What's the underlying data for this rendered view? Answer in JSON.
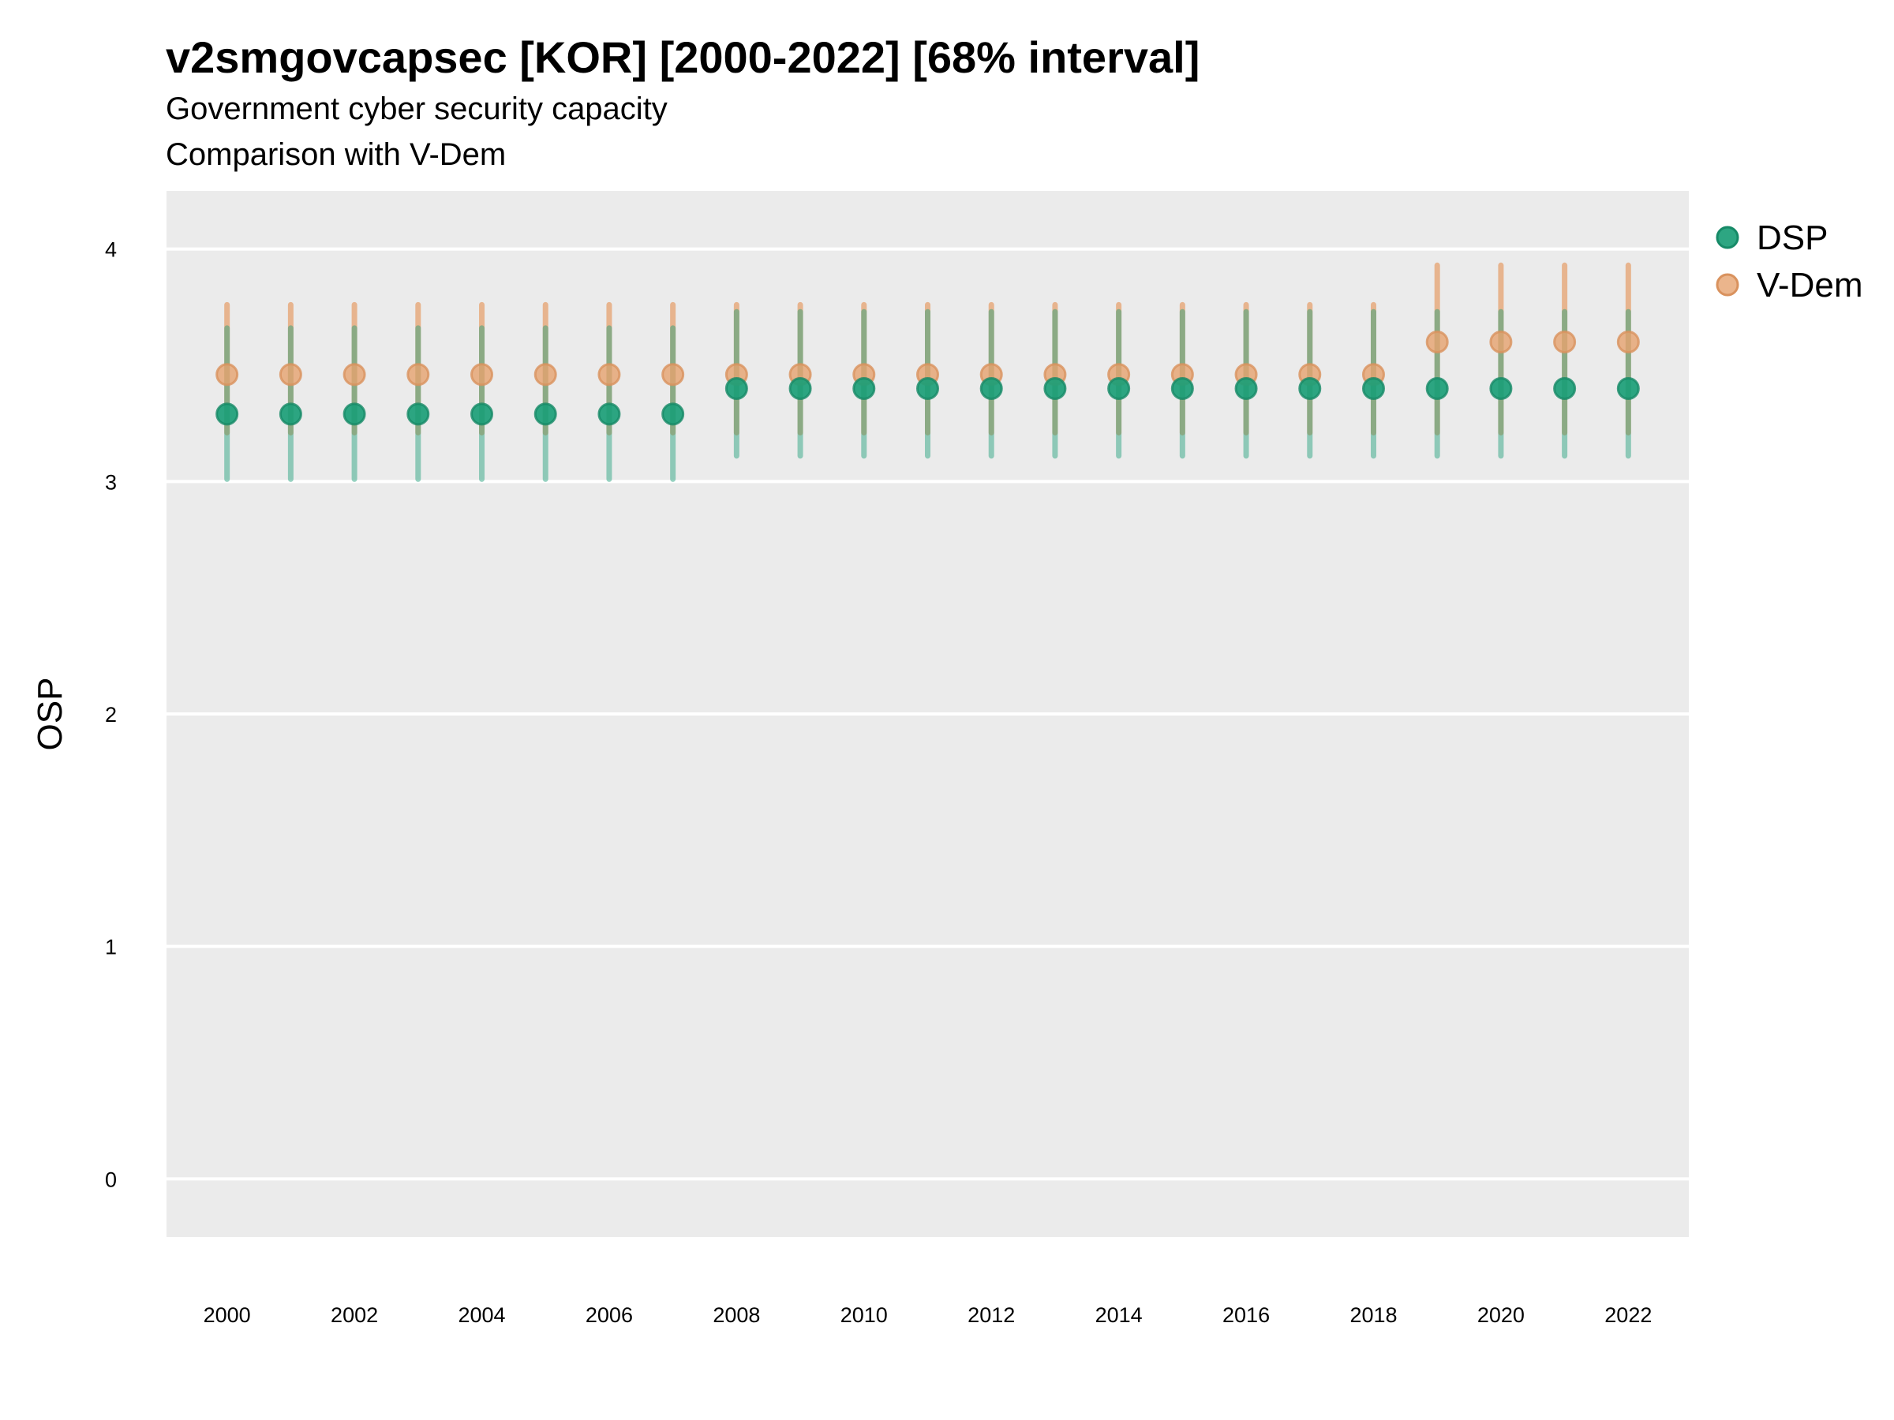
{
  "title": "v2smgovcapsec [KOR] [2000-2022] [68% interval]",
  "subtitle_lines": [
    "Government cyber security capacity",
    "Comparison with V-Dem"
  ],
  "colors": {
    "DSP": "#1b9e77",
    "V-Dem": "#e6a26f",
    "panel": "#ebebeb",
    "grid": "#ffffff"
  },
  "chart_data": {
    "type": "scatter",
    "subtype": "point-with-interval",
    "x_tick_labels": [
      "2000",
      "2002",
      "2004",
      "2006",
      "2008",
      "2010",
      "2012",
      "2014",
      "2016",
      "2018",
      "2020",
      "2022"
    ],
    "y_tick_labels": [
      "0",
      "1",
      "2",
      "3",
      "4"
    ],
    "ylabel": "OSP",
    "xlabel": "",
    "ylim": [
      -0.25,
      4.25
    ],
    "xlim": [
      1999.05,
      2022.95
    ],
    "grid": "horizontal major lines",
    "legend_position": "right-top",
    "series": [
      {
        "name": "DSP",
        "x": [
          2000,
          2001,
          2002,
          2003,
          2004,
          2005,
          2006,
          2007,
          2008,
          2009,
          2010,
          2011,
          2012,
          2013,
          2014,
          2015,
          2016,
          2017,
          2018,
          2019,
          2020,
          2021,
          2022
        ],
        "y": [
          3.29,
          3.29,
          3.29,
          3.29,
          3.29,
          3.29,
          3.29,
          3.29,
          3.4,
          3.4,
          3.4,
          3.4,
          3.4,
          3.4,
          3.4,
          3.4,
          3.4,
          3.4,
          3.4,
          3.4,
          3.4,
          3.4,
          3.4
        ],
        "lower": [
          3.01,
          3.01,
          3.01,
          3.01,
          3.01,
          3.01,
          3.01,
          3.01,
          3.11,
          3.11,
          3.11,
          3.11,
          3.11,
          3.11,
          3.11,
          3.11,
          3.11,
          3.11,
          3.11,
          3.11,
          3.11,
          3.11,
          3.11
        ],
        "upper": [
          3.66,
          3.66,
          3.66,
          3.66,
          3.66,
          3.66,
          3.66,
          3.66,
          3.73,
          3.73,
          3.73,
          3.73,
          3.73,
          3.73,
          3.73,
          3.73,
          3.73,
          3.73,
          3.73,
          3.73,
          3.73,
          3.73,
          3.73
        ]
      },
      {
        "name": "V-Dem",
        "x": [
          2000,
          2001,
          2002,
          2003,
          2004,
          2005,
          2006,
          2007,
          2008,
          2009,
          2010,
          2011,
          2012,
          2013,
          2014,
          2015,
          2016,
          2017,
          2018,
          2019,
          2020,
          2021,
          2022
        ],
        "y": [
          3.46,
          3.46,
          3.46,
          3.46,
          3.46,
          3.46,
          3.46,
          3.46,
          3.46,
          3.46,
          3.46,
          3.46,
          3.46,
          3.46,
          3.46,
          3.46,
          3.46,
          3.46,
          3.46,
          3.6,
          3.6,
          3.6,
          3.6
        ],
        "lower": [
          3.21,
          3.21,
          3.21,
          3.21,
          3.21,
          3.21,
          3.21,
          3.21,
          3.21,
          3.21,
          3.21,
          3.21,
          3.21,
          3.21,
          3.21,
          3.21,
          3.21,
          3.21,
          3.21,
          3.21,
          3.21,
          3.21,
          3.21
        ],
        "upper": [
          3.76,
          3.76,
          3.76,
          3.76,
          3.76,
          3.76,
          3.76,
          3.76,
          3.76,
          3.76,
          3.76,
          3.76,
          3.76,
          3.76,
          3.76,
          3.76,
          3.76,
          3.76,
          3.76,
          3.93,
          3.93,
          3.93,
          3.93
        ]
      }
    ]
  }
}
